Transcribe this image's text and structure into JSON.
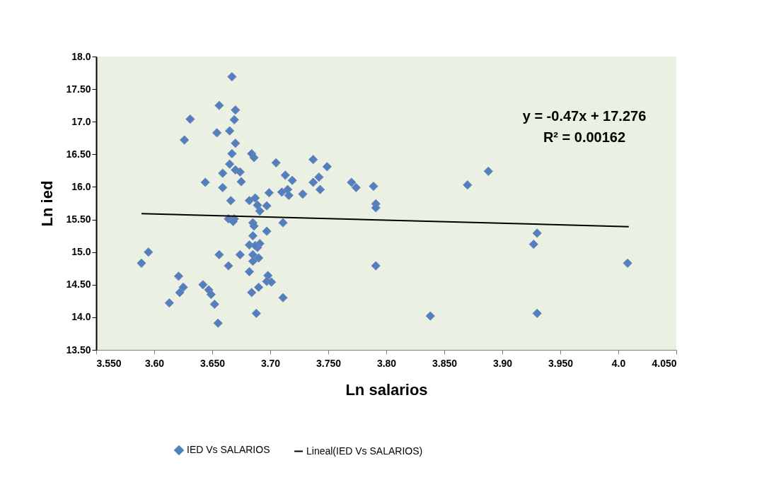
{
  "chart_data": {
    "type": "scatter",
    "xlabel": "Ln salarios",
    "ylabel": "Ln ied",
    "xlim": [
      3.55,
      4.05
    ],
    "ylim": [
      13.5,
      18.0
    ],
    "xticks": [
      {
        "value": 3.55,
        "label": "3.550"
      },
      {
        "value": 3.6,
        "label": "3.60"
      },
      {
        "value": 3.65,
        "label": "3.650"
      },
      {
        "value": 3.7,
        "label": "3.70"
      },
      {
        "value": 3.75,
        "label": "3.750"
      },
      {
        "value": 3.8,
        "label": "3.80"
      },
      {
        "value": 3.85,
        "label": "3.850"
      },
      {
        "value": 3.9,
        "label": "3.90"
      },
      {
        "value": 3.95,
        "label": "3.950"
      },
      {
        "value": 4.0,
        "label": "4.0"
      },
      {
        "value": 4.05,
        "label": "4.050"
      }
    ],
    "yticks": [
      {
        "value": 13.5,
        "label": "13.50"
      },
      {
        "value": 14.0,
        "label": "14.0"
      },
      {
        "value": 14.5,
        "label": "14.50"
      },
      {
        "value": 15.0,
        "label": "15.0"
      },
      {
        "value": 15.5,
        "label": "15.50"
      },
      {
        "value": 16.0,
        "label": "16.0"
      },
      {
        "value": 16.5,
        "label": "16.50"
      },
      {
        "value": 17.0,
        "label": "17.0"
      },
      {
        "value": 17.5,
        "label": "17.50"
      },
      {
        "value": 18.0,
        "label": "18.0"
      }
    ],
    "grid": false,
    "legend": "bottom",
    "marker": "diamond",
    "annotations": [
      "y = -0.47x + 17.276",
      "R² = 0.00162"
    ],
    "series": [
      {
        "name": "IED Vs SALARIOS",
        "type": "scatter",
        "color": "#4f81bd",
        "x": [
          3.667,
          3.656,
          3.67,
          3.631,
          3.669,
          3.654,
          3.665,
          3.626,
          3.67,
          3.667,
          3.684,
          3.686,
          3.665,
          3.67,
          3.674,
          3.705,
          3.659,
          3.644,
          3.675,
          3.659,
          3.713,
          3.699,
          3.71,
          3.666,
          3.682,
          3.687,
          3.689,
          3.697,
          3.691,
          3.664,
          3.669,
          3.668,
          3.685,
          3.686,
          3.711,
          3.697,
          3.685,
          3.682,
          3.691,
          3.689,
          3.687,
          3.595,
          3.589,
          3.656,
          3.674,
          3.685,
          3.69,
          3.685,
          3.664,
          3.682,
          3.621,
          3.625,
          3.622,
          3.642,
          3.647,
          3.649,
          3.652,
          3.613,
          3.655,
          3.698,
          3.697,
          3.701,
          3.684,
          3.69,
          3.711,
          3.688,
          3.737,
          3.749,
          3.719,
          3.742,
          3.737,
          3.743,
          3.728,
          3.715,
          3.716,
          3.77,
          3.774,
          3.789,
          3.791,
          3.791,
          3.87,
          3.888,
          3.93,
          3.927,
          3.791,
          4.008,
          3.838,
          3.93
        ],
        "values": [
          17.69,
          17.25,
          17.18,
          17.04,
          17.03,
          16.83,
          16.86,
          16.72,
          16.67,
          16.51,
          16.51,
          16.45,
          16.35,
          16.26,
          16.23,
          16.37,
          16.21,
          16.07,
          16.08,
          15.99,
          16.18,
          15.91,
          15.92,
          15.79,
          15.79,
          15.83,
          15.72,
          15.71,
          15.63,
          15.51,
          15.51,
          15.47,
          15.45,
          15.4,
          15.45,
          15.32,
          15.25,
          15.11,
          15.13,
          15.07,
          15.1,
          15.0,
          14.83,
          14.96,
          14.96,
          14.96,
          14.91,
          14.86,
          14.79,
          14.7,
          14.63,
          14.46,
          14.38,
          14.5,
          14.42,
          14.35,
          14.2,
          14.22,
          13.91,
          14.64,
          14.55,
          14.54,
          14.38,
          14.46,
          14.3,
          14.06,
          16.42,
          16.31,
          16.1,
          16.15,
          16.07,
          15.96,
          15.89,
          15.96,
          15.87,
          16.07,
          15.99,
          16.01,
          15.74,
          15.68,
          16.03,
          16.24,
          15.29,
          15.12,
          14.79,
          14.83,
          14.02,
          14.06
        ]
      },
      {
        "name": "Lineal(IED Vs SALARIOS)",
        "type": "line",
        "color": "#000000",
        "marker": "none",
        "x": [
          3.589,
          4.009
        ],
        "values": [
          15.59,
          15.39
        ]
      }
    ]
  }
}
